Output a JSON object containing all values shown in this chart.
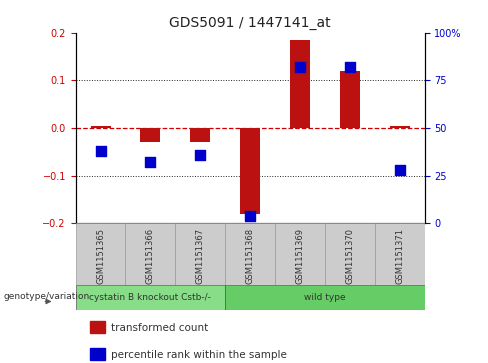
{
  "title": "GDS5091 / 1447141_at",
  "samples": [
    "GSM1151365",
    "GSM1151366",
    "GSM1151367",
    "GSM1151368",
    "GSM1151369",
    "GSM1151370",
    "GSM1151371"
  ],
  "transformed_count": [
    0.005,
    -0.03,
    -0.03,
    -0.18,
    0.185,
    0.12,
    0.005
  ],
  "percentile_rank_pct": [
    38,
    32,
    36,
    4,
    82,
    82,
    28
  ],
  "ylim": [
    -0.2,
    0.2
  ],
  "y2lim": [
    0,
    100
  ],
  "yticks": [
    -0.2,
    -0.1,
    0.0,
    0.1,
    0.2
  ],
  "y2ticks": [
    0,
    25,
    50,
    75,
    100
  ],
  "y2ticklabels": [
    "0",
    "25",
    "50",
    "75",
    "100%"
  ],
  "red_hline_color": "#cc0000",
  "grid_color": "#222222",
  "bar_color": "#bb1111",
  "dot_color": "#0000cc",
  "sample_box_color": "#cccccc",
  "sample_box_edge": "#999999",
  "group0_color": "#88dd88",
  "group1_color": "#66cc66",
  "group0_label": "cystatin B knockout Cstb-/-",
  "group1_label": "wild type",
  "group0_samples": [
    0,
    1,
    2
  ],
  "group1_samples": [
    3,
    4,
    5,
    6
  ],
  "genotype_label": "genotype/variation",
  "legend_label_bar": "transformed count",
  "legend_label_dot": "percentile rank within the sample",
  "bar_color_legend": "#bb1111",
  "dot_color_legend": "#0000cc",
  "background_color": "#ffffff",
  "bar_width": 0.4,
  "dot_size": 45,
  "title_fontsize": 10,
  "tick_fontsize": 7,
  "label_fontsize": 7,
  "legend_fontsize": 7.5
}
